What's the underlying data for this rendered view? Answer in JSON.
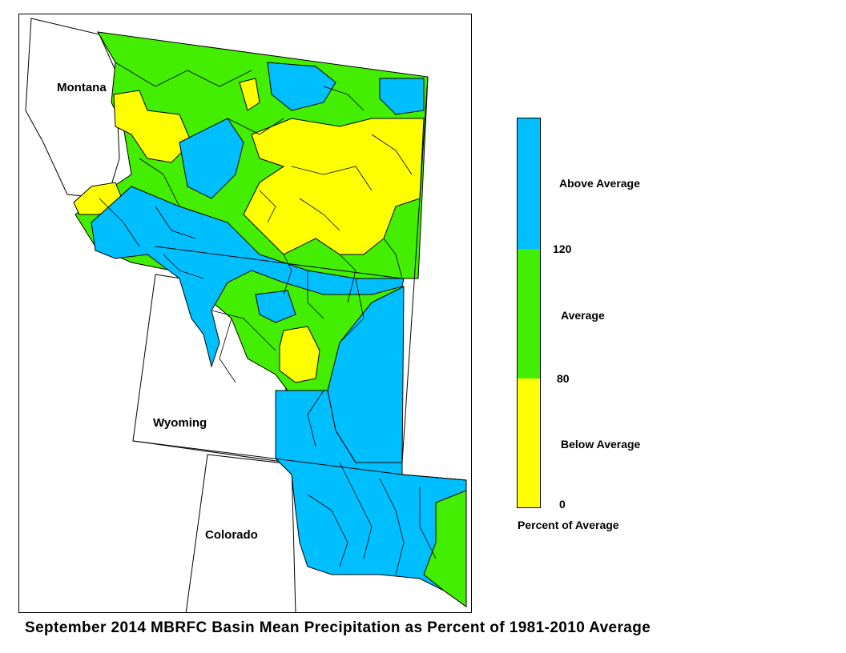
{
  "states": {
    "montana": "Montana",
    "wyoming": "Wyoming",
    "colorado": "Colorado"
  },
  "legend": {
    "title": "Percent of Average",
    "categories": [
      {
        "label": "Above Average",
        "color": "#00BFFF"
      },
      {
        "label": "Average",
        "color": "#44EE00"
      },
      {
        "label": "Below Average",
        "color": "#FFFF00"
      }
    ],
    "breaks": {
      "b120": "120",
      "b80": "80",
      "b0": "0"
    }
  },
  "map_summary": {
    "region": "Missouri Basin River Forecast Center (MBRFC) – Montana, Wyoming, Colorado",
    "northern_montana": "mostly Average with a large Below Average area in central Montana",
    "southwest_montana_wyoming_border": "Above Average",
    "central_wyoming": "mixture of Average and Above Average with small Below Average pockets",
    "eastern_wyoming_colorado": "predominantly Above Average"
  },
  "caption": "September 2014 MBRFC Basin Mean Precipitation as Percent of 1981-2010 Average"
}
